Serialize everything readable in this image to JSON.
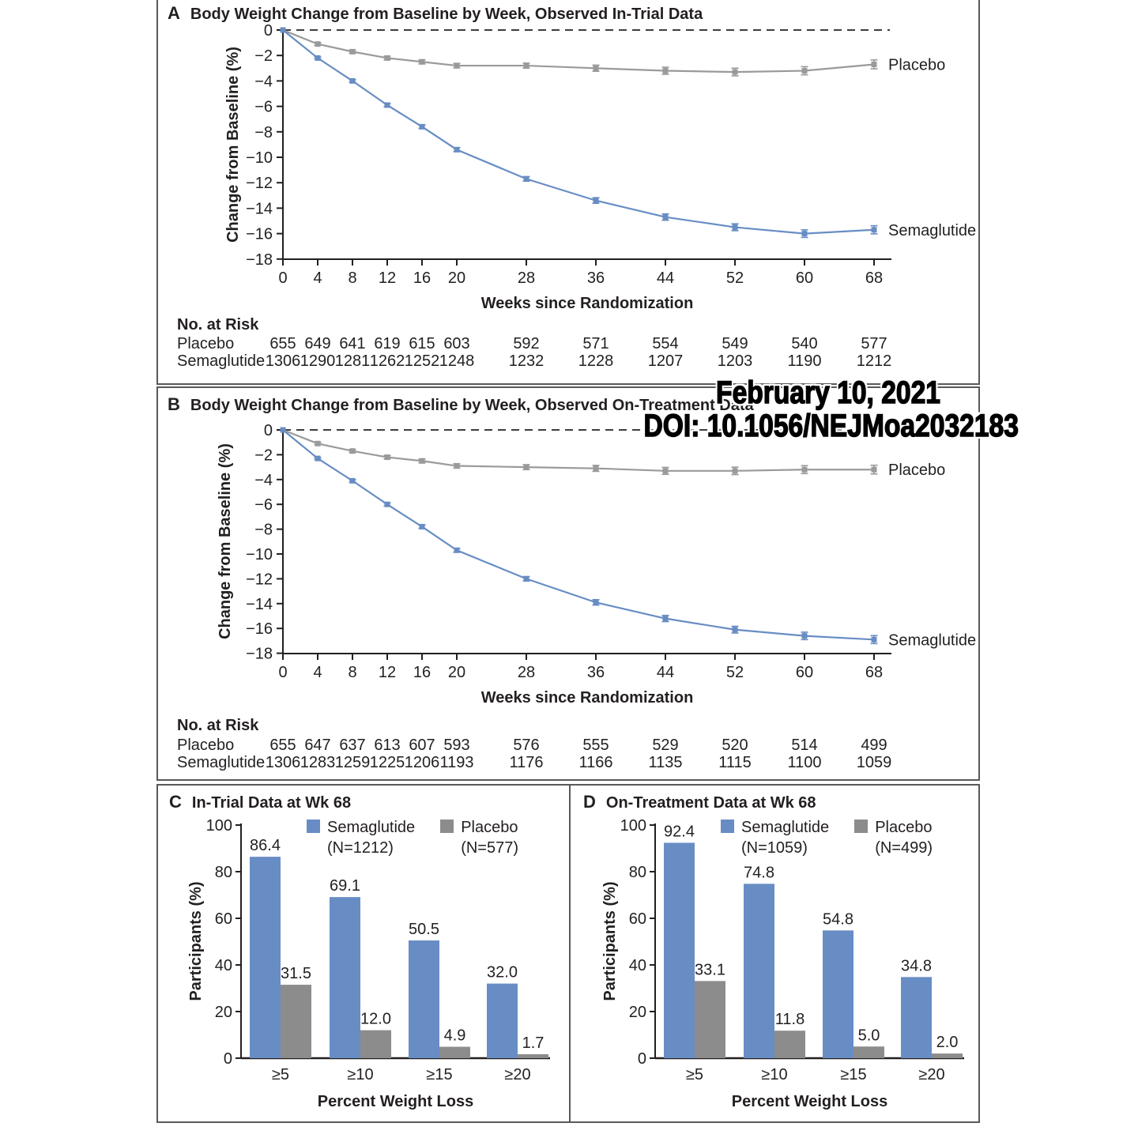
{
  "overlay": {
    "line1": "February 10, 2021",
    "line2": "DOI: 10.1056/NEJMoa2032183"
  },
  "colors": {
    "semaglutide_blue": "#688dc4",
    "placebo_line_gray": "#9a9a9a",
    "placebo_bar_gray": "#8c8c8c",
    "axis_black": "#231f20",
    "dashed_line": "#3d3d3d"
  },
  "chart_data": [
    {
      "type": "line",
      "panel_letter": "A",
      "title": "Body Weight Change from Baseline by Week, Observed In-Trial Data",
      "xlabel": "Weeks since Randomization",
      "ylabel": "Change from Baseline (%)",
      "x": [
        0,
        4,
        8,
        12,
        16,
        20,
        28,
        36,
        44,
        52,
        60,
        68
      ],
      "ylim": [
        -18,
        0
      ],
      "yticks": [
        0,
        -2,
        -4,
        -6,
        -8,
        -10,
        -12,
        -14,
        -16,
        -18
      ],
      "series": [
        {
          "name": "Placebo",
          "color": "#9a9a9a",
          "values": [
            0,
            -1.1,
            -1.7,
            -2.2,
            -2.5,
            -2.8,
            -2.8,
            -3.0,
            -3.2,
            -3.3,
            -3.2,
            -2.7
          ],
          "se": [
            0,
            0.1,
            0.12,
            0.14,
            0.16,
            0.18,
            0.2,
            0.24,
            0.28,
            0.3,
            0.32,
            0.35
          ]
        },
        {
          "name": "Semaglutide",
          "color": "#688dc4",
          "values": [
            0,
            -2.2,
            -4.0,
            -5.9,
            -7.6,
            -9.4,
            -11.7,
            -13.4,
            -14.7,
            -15.5,
            -16.0,
            -15.7
          ],
          "se": [
            0,
            0.08,
            0.1,
            0.12,
            0.14,
            0.16,
            0.18,
            0.22,
            0.25,
            0.27,
            0.3,
            0.32
          ]
        }
      ],
      "no_at_risk": {
        "header": "No. at Risk",
        "rows": [
          {
            "label": "Placebo",
            "values": [
              655,
              649,
              641,
              619,
              615,
              603,
              592,
              571,
              554,
              549,
              540,
              577
            ]
          },
          {
            "label": "Semaglutide",
            "values": [
              1306,
              1290,
              1281,
              1262,
              1252,
              1248,
              1232,
              1228,
              1207,
              1203,
              1190,
              1212
            ]
          }
        ]
      }
    },
    {
      "type": "line",
      "panel_letter": "B",
      "title": "Body Weight Change from Baseline by Week, Observed On-Treatment Data",
      "xlabel": "Weeks since Randomization",
      "ylabel": "Change from Baseline (%)",
      "x": [
        0,
        4,
        8,
        12,
        16,
        20,
        28,
        36,
        44,
        52,
        60,
        68
      ],
      "ylim": [
        -18,
        0
      ],
      "yticks": [
        0,
        -2,
        -4,
        -6,
        -8,
        -10,
        -12,
        -14,
        -16,
        -18
      ],
      "series": [
        {
          "name": "Placebo",
          "color": "#9a9a9a",
          "values": [
            0,
            -1.1,
            -1.7,
            -2.2,
            -2.5,
            -2.9,
            -3.0,
            -3.1,
            -3.3,
            -3.3,
            -3.2,
            -3.2
          ],
          "se": [
            0,
            0.1,
            0.12,
            0.14,
            0.16,
            0.18,
            0.2,
            0.24,
            0.28,
            0.3,
            0.32,
            0.35
          ]
        },
        {
          "name": "Semaglutide",
          "color": "#688dc4",
          "values": [
            0,
            -2.3,
            -4.1,
            -6.0,
            -7.8,
            -9.7,
            -12.0,
            -13.9,
            -15.2,
            -16.1,
            -16.6,
            -16.9
          ],
          "se": [
            0,
            0.08,
            0.1,
            0.12,
            0.14,
            0.16,
            0.18,
            0.22,
            0.25,
            0.27,
            0.3,
            0.32
          ]
        }
      ],
      "no_at_risk": {
        "header": "No. at Risk",
        "rows": [
          {
            "label": "Placebo",
            "values": [
              655,
              647,
              637,
              613,
              607,
              593,
              576,
              555,
              529,
              520,
              514,
              499
            ]
          },
          {
            "label": "Semaglutide",
            "values": [
              1306,
              1283,
              1259,
              1225,
              1206,
              1193,
              1176,
              1166,
              1135,
              1115,
              1100,
              1059
            ]
          }
        ]
      }
    },
    {
      "type": "bar",
      "panel_letter": "C",
      "title": "In-Trial Data at Wk 68",
      "xlabel": "Percent Weight Loss",
      "ylabel": "Participants (%)",
      "ylim": [
        0,
        100
      ],
      "yticks": [
        0,
        20,
        40,
        60,
        80,
        100
      ],
      "categories": [
        "≥5",
        "≥10",
        "≥15",
        "≥20"
      ],
      "series": [
        {
          "name": "Semaglutide",
          "n_label": "(N=1212)",
          "color": "#688dc4",
          "values": [
            "86.4",
            "69.1",
            "50.5",
            "32.0"
          ]
        },
        {
          "name": "Placebo",
          "n_label": "(N=577)",
          "color": "#8c8c8c",
          "values": [
            "31.5",
            "12.0",
            "4.9",
            "1.7"
          ]
        }
      ]
    },
    {
      "type": "bar",
      "panel_letter": "D",
      "title": "On-Treatment Data at Wk 68",
      "xlabel": "Percent Weight Loss",
      "ylabel": "Participants (%)",
      "ylim": [
        0,
        100
      ],
      "yticks": [
        0,
        20,
        40,
        60,
        80,
        100
      ],
      "categories": [
        "≥5",
        "≥10",
        "≥15",
        "≥20"
      ],
      "series": [
        {
          "name": "Semaglutide",
          "n_label": "(N=1059)",
          "color": "#688dc4",
          "values": [
            "92.4",
            "74.8",
            "54.8",
            "34.8"
          ]
        },
        {
          "name": "Placebo",
          "n_label": "(N=499)",
          "color": "#8c8c8c",
          "values": [
            "33.1",
            "11.8",
            "5.0",
            "2.0"
          ]
        }
      ]
    }
  ]
}
